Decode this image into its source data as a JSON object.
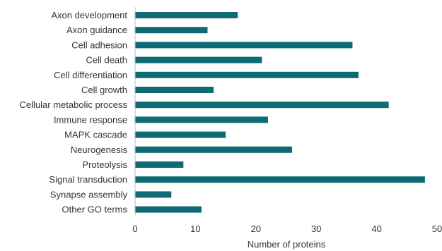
{
  "chart_data": {
    "type": "bar",
    "orientation": "horizontal",
    "categories": [
      "Axon development",
      "Axon guidance",
      "Cell adhesion",
      "Cell death",
      "Cell differentiation",
      "Cell growth",
      "Cellular metabolic process",
      "Immune response",
      "MAPK cascade",
      "Neurogenesis",
      "Proteolysis",
      "Signal transduction",
      "Synapse assembly",
      "Other GO terms"
    ],
    "values": [
      17,
      12,
      36,
      21,
      37,
      13,
      42,
      22,
      15,
      26,
      8,
      48,
      6,
      11
    ],
    "xlabel": "Number of proteins",
    "ylabel": "",
    "xlim": [
      0,
      50
    ],
    "xticks": [
      0,
      10,
      20,
      30,
      40,
      50
    ],
    "bar_color": "#0e6b76",
    "axis_color": "#bfbfbf",
    "grid": false,
    "legend": "none"
  }
}
